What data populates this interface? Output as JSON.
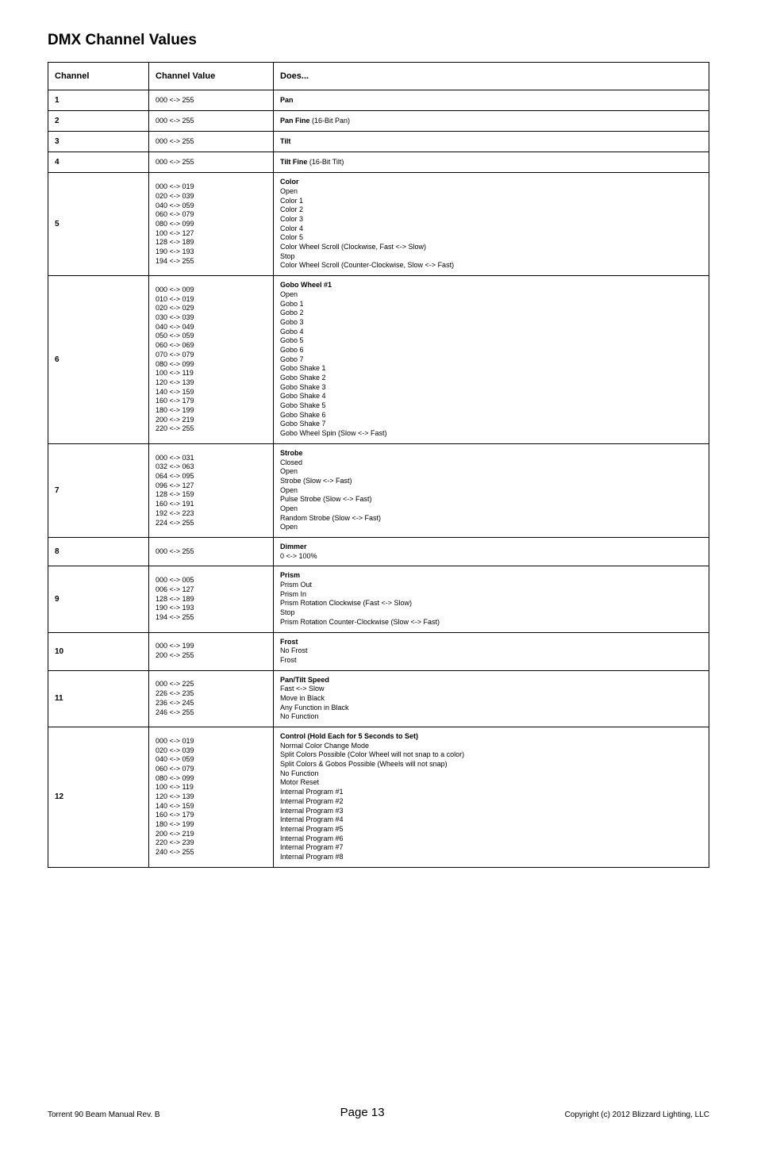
{
  "title": "DMX Channel Values",
  "headers": {
    "channel": "Channel",
    "value": "Channel Value",
    "does": "Does..."
  },
  "rows": [
    {
      "channel": "1",
      "values": [
        "000 <-> 255"
      ],
      "does": [
        {
          "t": "Pan",
          "b": true
        }
      ]
    },
    {
      "channel": "2",
      "values": [
        "000 <-> 255"
      ],
      "does": [
        {
          "t": "Pan Fine",
          "b": true
        },
        {
          "t": " (16-Bit Pan)",
          "b": false,
          "same": true
        }
      ]
    },
    {
      "channel": "3",
      "values": [
        "000 <-> 255"
      ],
      "does": [
        {
          "t": "Tilt",
          "b": true
        }
      ]
    },
    {
      "channel": "4",
      "values": [
        "000 <-> 255"
      ],
      "does": [
        {
          "t": "Tilt Fine",
          "b": true
        },
        {
          "t": " (16-Bit Tilt)",
          "b": false,
          "same": true
        }
      ]
    },
    {
      "channel": "5",
      "values": [
        "000 <-> 019",
        "020 <-> 039",
        "040 <-> 059",
        "060 <-> 079",
        "080 <-> 099",
        "100 <-> 127",
        "128 <-> 189",
        "190 <-> 193",
        "194 <-> 255"
      ],
      "does": [
        {
          "t": "Color",
          "b": true
        },
        {
          "t": "Open"
        },
        {
          "t": "Color 1"
        },
        {
          "t": "Color 2"
        },
        {
          "t": "Color 3"
        },
        {
          "t": "Color 4"
        },
        {
          "t": "Color 5"
        },
        {
          "t": "Color Wheel Scroll (Clockwise, Fast <-> Slow)"
        },
        {
          "t": "Stop"
        },
        {
          "t": "Color Wheel Scroll (Counter-Clockwise, Slow <-> Fast)"
        }
      ]
    },
    {
      "channel": "6",
      "values": [
        "000 <-> 009",
        "010 <-> 019",
        "020 <-> 029",
        "030 <-> 039",
        "040 <-> 049",
        "050 <-> 059",
        "060 <-> 069",
        "070 <-> 079",
        "080 <-> 099",
        "100 <-> 119",
        "120 <-> 139",
        "140 <-> 159",
        "160 <-> 179",
        "180 <-> 199",
        "200 <-> 219",
        "220 <-> 255"
      ],
      "does": [
        {
          "t": "Gobo Wheel #1",
          "b": true
        },
        {
          "t": "Open"
        },
        {
          "t": "Gobo 1"
        },
        {
          "t": "Gobo 2"
        },
        {
          "t": "Gobo 3"
        },
        {
          "t": "Gobo 4"
        },
        {
          "t": "Gobo 5"
        },
        {
          "t": "Gobo 6"
        },
        {
          "t": "Gobo 7"
        },
        {
          "t": "Gobo Shake 1"
        },
        {
          "t": "Gobo Shake 2"
        },
        {
          "t": "Gobo Shake 3"
        },
        {
          "t": "Gobo Shake 4"
        },
        {
          "t": "Gobo Shake 5"
        },
        {
          "t": "Gobo Shake 6"
        },
        {
          "t": "Gobo Shake 7"
        },
        {
          "t": "Gobo Wheel Spin (Slow <-> Fast)"
        }
      ]
    },
    {
      "channel": "7",
      "values": [
        "000 <-> 031",
        "032 <-> 063",
        "064 <-> 095",
        "096 <-> 127",
        "128 <-> 159",
        "160 <-> 191",
        "192 <-> 223",
        "224 <-> 255"
      ],
      "does": [
        {
          "t": "Strobe",
          "b": true
        },
        {
          "t": "Closed"
        },
        {
          "t": "Open"
        },
        {
          "t": "Strobe (Slow <-> Fast)"
        },
        {
          "t": "Open"
        },
        {
          "t": "Pulse Strobe (Slow <-> Fast)"
        },
        {
          "t": "Open"
        },
        {
          "t": "Random Strobe (Slow <-> Fast)"
        },
        {
          "t": "Open"
        }
      ]
    },
    {
      "channel": "8",
      "values": [
        "000 <-> 255"
      ],
      "does": [
        {
          "t": "Dimmer",
          "b": true
        },
        {
          "t": "0 <-> 100%"
        }
      ]
    },
    {
      "channel": "9",
      "values": [
        "000 <-> 005",
        "006 <-> 127",
        "128 <-> 189",
        "190 <-> 193",
        "194 <-> 255"
      ],
      "does": [
        {
          "t": "Prism",
          "b": true
        },
        {
          "t": "Prism Out"
        },
        {
          "t": "Prism In"
        },
        {
          "t": "Prism Rotation Clockwise (Fast <-> Slow)"
        },
        {
          "t": "Stop"
        },
        {
          "t": "Prism Rotation Counter-Clockwise (Slow <-> Fast)"
        }
      ]
    },
    {
      "channel": "10",
      "values": [
        "000 <-> 199",
        "200 <-> 255"
      ],
      "does": [
        {
          "t": "Frost",
          "b": true
        },
        {
          "t": "No Frost"
        },
        {
          "t": "Frost"
        }
      ]
    },
    {
      "channel": "11",
      "values": [
        "000 <-> 225",
        "226 <-> 235",
        "236 <-> 245",
        "246 <-> 255"
      ],
      "does": [
        {
          "t": "Pan/Tilt Speed",
          "b": true
        },
        {
          "t": "Fast <-> Slow"
        },
        {
          "t": "Move in Black"
        },
        {
          "t": "Any Function in Black"
        },
        {
          "t": "No Function"
        }
      ]
    },
    {
      "channel": "12",
      "values": [
        "000 <-> 019",
        "020 <-> 039",
        "040 <-> 059",
        "060 <-> 079",
        "080 <-> 099",
        "100 <-> 119",
        "120 <-> 139",
        "140 <-> 159",
        "160 <-> 179",
        "180 <-> 199",
        "200 <-> 219",
        "220 <-> 239",
        "240 <-> 255"
      ],
      "does": [
        {
          "t": "Control (Hold Each for 5 Seconds to Set)",
          "b": true
        },
        {
          "t": "Normal Color Change Mode"
        },
        {
          "t": "Split Colors Possible (Color Wheel will not snap to a color)"
        },
        {
          "t": "Split Colors & Gobos Possible (Wheels will not snap)"
        },
        {
          "t": "No Function"
        },
        {
          "t": "Motor Reset"
        },
        {
          "t": "Internal Program #1"
        },
        {
          "t": "Internal Program #2"
        },
        {
          "t": "Internal Program #3"
        },
        {
          "t": "Internal Program #4"
        },
        {
          "t": "Internal Program #5"
        },
        {
          "t": "Internal Program #6"
        },
        {
          "t": "Internal Program #7"
        },
        {
          "t": "Internal Program #8"
        }
      ]
    }
  ],
  "footer": {
    "left": "Torrent 90 Beam Manual Rev. B",
    "center": "Page 13",
    "right": "Copyright (c) 2012 Blizzard Lighting, LLC"
  }
}
